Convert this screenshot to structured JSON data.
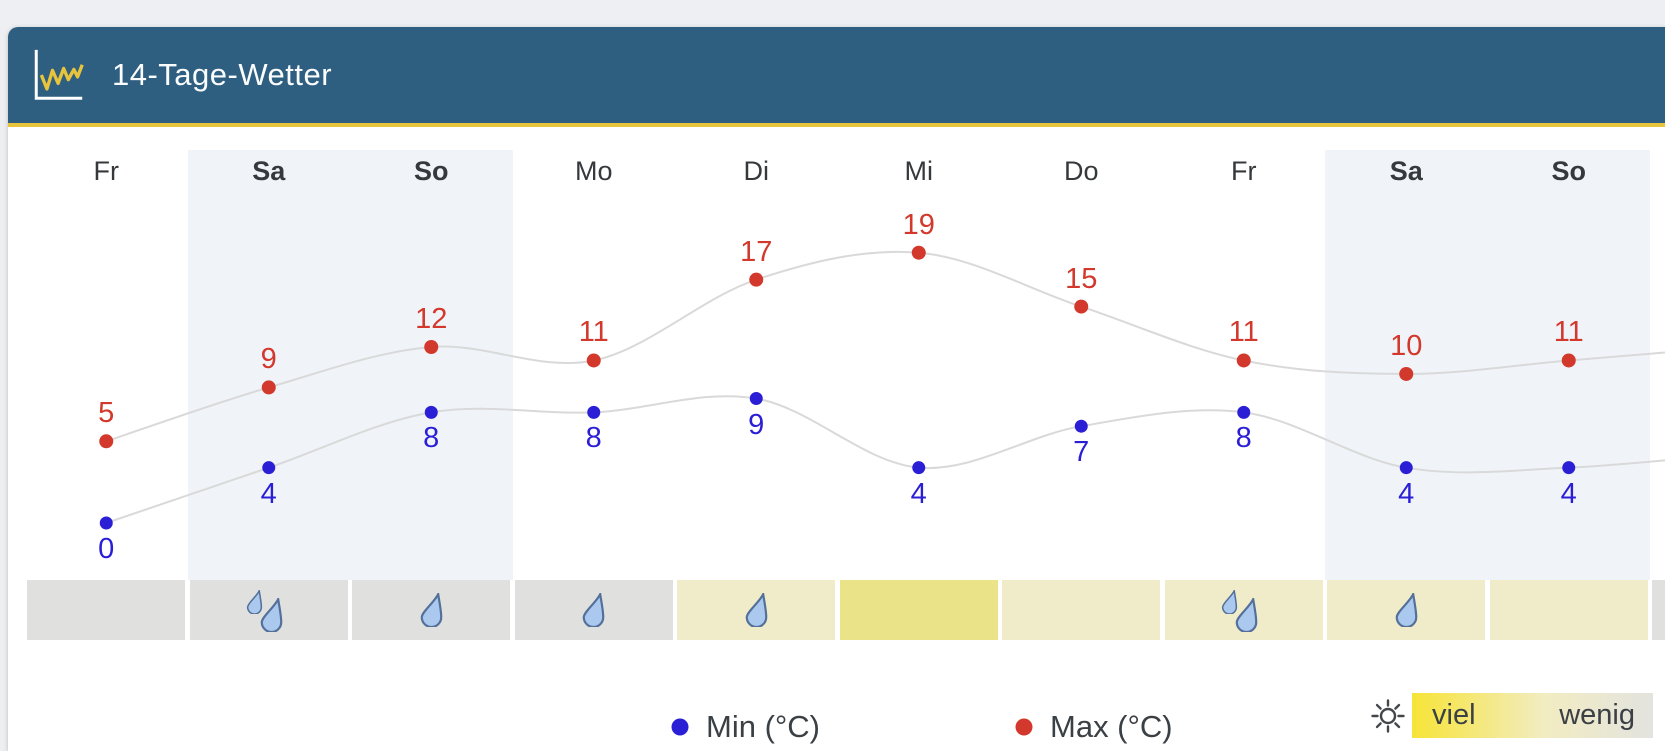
{
  "header": {
    "title": "14-Tage-Wetter"
  },
  "chart_data": {
    "type": "line",
    "title": "14-Tage-Wetter",
    "categories": [
      "Fr",
      "Sa",
      "So",
      "Mo",
      "Di",
      "Mi",
      "Do",
      "Fr",
      "Sa",
      "So"
    ],
    "series": [
      {
        "name": "Max (°C)",
        "color": "#d3382c",
        "values": [
          5,
          9,
          12,
          11,
          17,
          19,
          15,
          11,
          10,
          11
        ]
      },
      {
        "name": "Min (°C)",
        "color": "#2b1fd6",
        "values": [
          0,
          4,
          8,
          8,
          9,
          4,
          7,
          8,
          4,
          4
        ]
      }
    ],
    "ylim": [
      -2,
      22
    ],
    "grid": false,
    "legend_position": "bottom",
    "line_color": "#d9d9d9",
    "weekend_columns": [
      1,
      2,
      8,
      9
    ],
    "weekend_tint": "#f0f4f8",
    "precip_drops": [
      0,
      2,
      1,
      1,
      1,
      0,
      0,
      2,
      1,
      0
    ],
    "sun_cells": [
      "gray",
      "gray",
      "gray",
      "gray",
      "pale",
      "bright",
      "pale",
      "pale",
      "pale",
      "pale"
    ],
    "sun_cell_colors": {
      "gray": "#e0e0df",
      "pale": "#f0ecc9",
      "bright": "#ebe387"
    },
    "partial_next_column": {
      "sun_cell": "gray"
    }
  },
  "legend": {
    "min_label": "Min (°C)",
    "max_label": "Max (°C)",
    "sun_much": "viel",
    "sun_little": "wenig"
  },
  "colors": {
    "header_bg": "#2e5f80",
    "header_accent": "#e8c33c",
    "max": "#d3382c",
    "min": "#2b1fd6",
    "drop_fill": "#abc9ef",
    "drop_stroke": "#53709a",
    "text": "#3b4045"
  }
}
